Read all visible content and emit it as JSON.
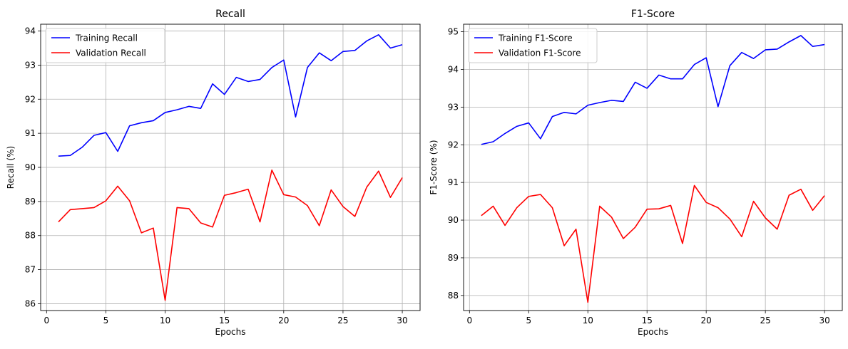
{
  "chart_data": [
    {
      "type": "line",
      "title": "Recall",
      "xlabel": "Epochs",
      "ylabel": "Recall (%)",
      "xlim": [
        -0.5,
        31.5
      ],
      "ylim": [
        85.8,
        94.2
      ],
      "xticks": [
        0,
        5,
        10,
        15,
        20,
        25,
        30
      ],
      "yticks": [
        86,
        87,
        88,
        89,
        90,
        91,
        92,
        93,
        94
      ],
      "grid": true,
      "legend_position": "upper-left",
      "x": [
        1,
        2,
        3,
        4,
        5,
        6,
        7,
        8,
        9,
        10,
        11,
        12,
        13,
        14,
        15,
        16,
        17,
        18,
        19,
        20,
        21,
        22,
        23,
        24,
        25,
        26,
        27,
        28,
        29,
        30
      ],
      "series": [
        {
          "name": "Training Recall",
          "color": "#0000ff",
          "values": [
            90.33,
            90.35,
            90.59,
            90.94,
            91.02,
            90.47,
            91.22,
            91.31,
            91.37,
            91.61,
            91.69,
            91.79,
            91.73,
            92.45,
            92.14,
            92.64,
            92.52,
            92.58,
            92.93,
            93.15,
            91.48,
            92.93,
            93.36,
            93.13,
            93.4,
            93.43,
            93.71,
            93.89,
            93.5,
            93.6
          ]
        },
        {
          "name": "Validation Recall",
          "color": "#ff0000",
          "values": [
            88.4,
            88.76,
            88.79,
            88.82,
            89.02,
            89.45,
            89.02,
            88.08,
            88.22,
            86.1,
            88.82,
            88.79,
            88.37,
            88.25,
            89.18,
            89.26,
            89.36,
            88.4,
            89.92,
            89.2,
            89.13,
            88.88,
            88.29,
            89.34,
            88.85,
            88.56,
            89.42,
            89.89,
            89.12,
            89.7
          ]
        }
      ]
    },
    {
      "type": "line",
      "title": "F1-Score",
      "xlabel": "Epochs",
      "ylabel": "F1-Score (%)",
      "xlim": [
        -0.5,
        31.5
      ],
      "ylim": [
        87.6,
        95.2
      ],
      "xticks": [
        0,
        5,
        10,
        15,
        20,
        25,
        30
      ],
      "yticks": [
        88,
        89,
        90,
        91,
        92,
        93,
        94,
        95
      ],
      "grid": true,
      "legend_position": "upper-left",
      "x": [
        1,
        2,
        3,
        4,
        5,
        6,
        7,
        8,
        9,
        10,
        11,
        12,
        13,
        14,
        15,
        16,
        17,
        18,
        19,
        20,
        21,
        22,
        23,
        24,
        25,
        26,
        27,
        28,
        29,
        30
      ],
      "series": [
        {
          "name": "Training F1-Score",
          "color": "#0000ff",
          "values": [
            92.01,
            92.08,
            92.3,
            92.49,
            92.58,
            92.16,
            92.75,
            92.86,
            92.82,
            93.05,
            93.12,
            93.18,
            93.15,
            93.66,
            93.5,
            93.85,
            93.75,
            93.75,
            94.13,
            94.31,
            93.01,
            94.1,
            94.45,
            94.29,
            94.52,
            94.54,
            94.73,
            94.9,
            94.61,
            94.66
          ]
        },
        {
          "name": "Validation F1-Score",
          "color": "#ff0000",
          "values": [
            90.12,
            90.37,
            89.86,
            90.33,
            90.63,
            90.68,
            90.33,
            89.32,
            89.76,
            87.82,
            90.37,
            90.08,
            89.51,
            89.81,
            90.29,
            90.3,
            90.39,
            89.38,
            90.92,
            90.47,
            90.33,
            90.03,
            89.56,
            90.5,
            90.06,
            89.76,
            90.66,
            90.82,
            90.26,
            90.65
          ]
        }
      ]
    }
  ]
}
